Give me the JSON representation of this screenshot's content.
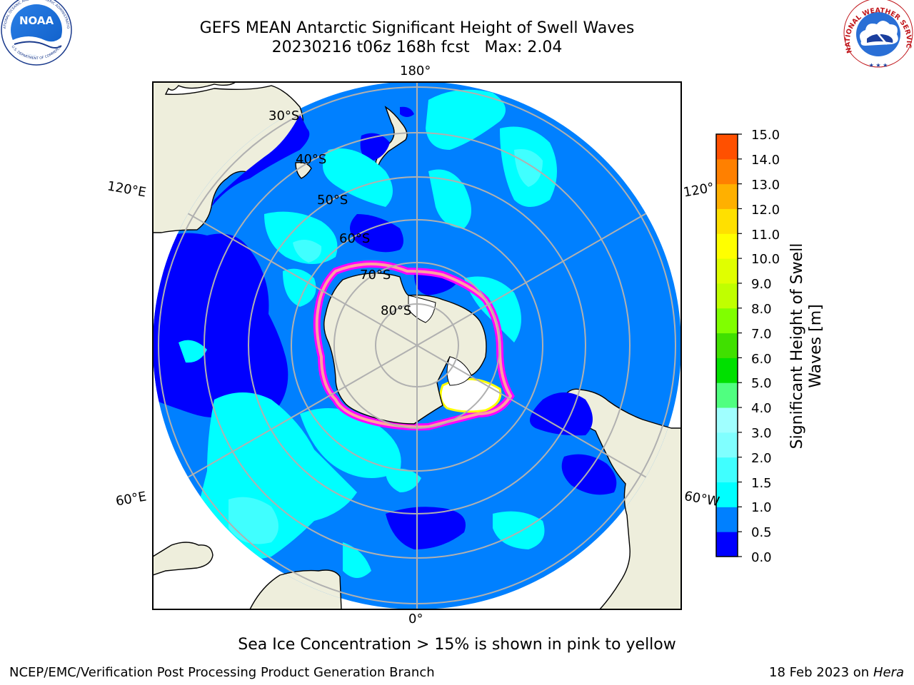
{
  "header": {
    "title_line1": "GEFS MEAN Antarctic Significant Height of Swell Waves",
    "title_line2": "20230216 t06z 168h fcst   Max: 2.04"
  },
  "logos": {
    "left": "NOAA",
    "left_ring_text": "NATIONAL OCEANIC AND ATMOSPHERIC ADMINISTRATION",
    "left_bottom_text": "U.S. DEPARTMENT OF COMMERCE",
    "right_ring_text": "NATIONAL WEATHER SERVICE"
  },
  "map": {
    "projection": "south-polar-stereographic",
    "longitude_labels": {
      "top": "180°",
      "bottom": "0°",
      "upper_left": "120°E",
      "lower_left": "60°E",
      "upper_right": "120°",
      "lower_right": "60°W"
    },
    "latitude_labels": [
      "30°S",
      "40°S",
      "50°S",
      "60°S",
      "70°S",
      "80°S"
    ],
    "colors": {
      "land": "#eeeedc",
      "ocean_0_0_5": "#0000ff",
      "ocean_0_5_1_0": "#0080ff",
      "ocean_1_0_1_5": "#00ffff",
      "ocean_1_5_2_0": "#40ffff",
      "sea_ice": "#ffffff",
      "ice_edge": [
        "#ff00ff",
        "#ff80ff",
        "#ffa080",
        "#ffff00"
      ],
      "grid": "#b0b0b0"
    }
  },
  "colorbar": {
    "label": "Significant Height of Swell Waves [m]",
    "ticks": [
      "15.0",
      "14.0",
      "13.0",
      "12.0",
      "11.0",
      "10.0",
      "9.0",
      "8.0",
      "7.0",
      "6.0",
      "5.0",
      "4.0",
      "3.0",
      "2.0",
      "1.5",
      "1.0",
      "0.5",
      "0.0"
    ],
    "colors": [
      "#0000ff",
      "#0080ff",
      "#00ffff",
      "#40ffff",
      "#80ffff",
      "#a0ffff",
      "#50ff80",
      "#00e000",
      "#40e000",
      "#80ff00",
      "#c0ff00",
      "#e0ff00",
      "#ffff00",
      "#ffe000",
      "#ffb000",
      "#ff8000",
      "#ff5000",
      "#ff2000",
      "#ff0000"
    ]
  },
  "footer": {
    "caption": "Sea Ice Concentration > 15% is shown in pink to yellow",
    "credit": "NCEP/EMC/Verification Post Processing Product Generation Branch",
    "date": "18 Feb 2023 on",
    "machine": "Hera"
  }
}
